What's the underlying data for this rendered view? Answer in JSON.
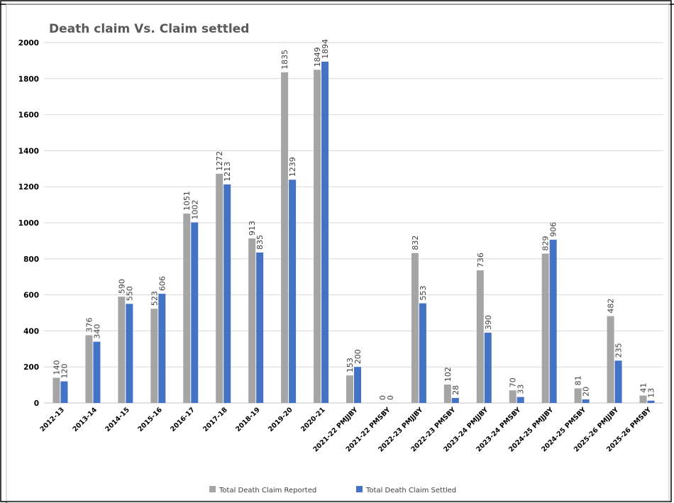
{
  "chart_data": {
    "type": "bar",
    "title": "Death claim Vs. Claim settled",
    "categories": [
      "2012-13",
      "2013-14",
      "2014-15",
      "2015-16",
      "2016-17",
      "2017-18",
      "2018-19",
      "2019-20",
      "2020-21",
      "2021-22 PMJJBY",
      "2021-22 PMSBY",
      "2022-23 PMJJBY",
      "2022-23 PMSBY",
      "2023-24 PMJJBY",
      "2023-24 PMSBY",
      "2024-25 PMJJBY",
      "2024-25 PMSBY",
      "2025-26 PMJJBY",
      "2025-26 PMSBY"
    ],
    "series": [
      {
        "name": "Total Death Claim Reported",
        "color": "#a5a5a5",
        "values": [
          140,
          376,
          590,
          523,
          1051,
          1272,
          913,
          1835,
          1849,
          153,
          0,
          832,
          102,
          736,
          70,
          829,
          81,
          482,
          41
        ]
      },
      {
        "name": "Total Death Claim Settled",
        "color": "#4472c4",
        "values": [
          120,
          340,
          550,
          606,
          1002,
          1213,
          835,
          1239,
          1894,
          200,
          0,
          553,
          28,
          390,
          33,
          906,
          20,
          235,
          13
        ]
      }
    ],
    "ylim": [
      0,
      2000
    ],
    "yticks": [
      0,
      200,
      400,
      600,
      800,
      1000,
      1200,
      1400,
      1600,
      1800,
      2000
    ],
    "grid": true,
    "legend": "bottom",
    "data_labels": true
  }
}
